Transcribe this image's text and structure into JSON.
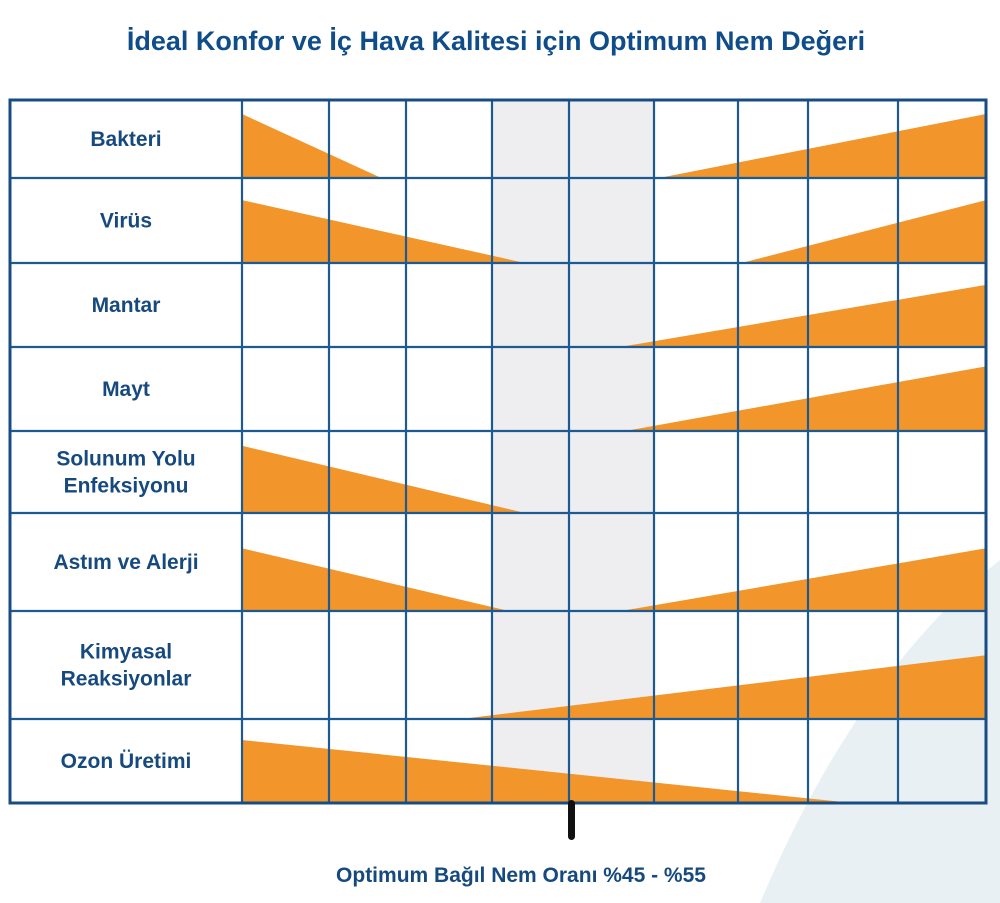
{
  "chart_data": {
    "type": "table",
    "title": "İdeal Konfor ve İç Hava Kalitesi için Optimum Nem Değeri",
    "xlabel": "Optimum Bağıl Nem Oranı %45 - %55",
    "grid": true,
    "columns": 9,
    "optimum_columns": [
      3,
      5
    ],
    "colors": {
      "risk": "#f2952b",
      "grid": "#1d5a92",
      "optimum": "#eeeef0",
      "text": "#164a7e"
    },
    "rows": [
      {
        "label": [
          "Bakteri"
        ],
        "left": {
          "end": 1.68,
          "height": 0.82
        },
        "right": {
          "start": 5.06,
          "height": 0.82
        }
      },
      {
        "label": [
          "Virüs"
        ],
        "left": {
          "end": 3.43,
          "height": 0.74
        },
        "right": {
          "start": 6.05,
          "height": 0.74
        }
      },
      {
        "label": [
          "Mantar"
        ],
        "left": null,
        "right": {
          "start": 4.6,
          "height": 0.74
        }
      },
      {
        "label": [
          "Mayt"
        ],
        "left": null,
        "right": {
          "start": 4.66,
          "height": 0.77
        }
      },
      {
        "label": [
          "Solunum Yolu",
          "Enfeksiyonu"
        ],
        "left": {
          "end": 3.43,
          "height": 0.82
        },
        "right": null
      },
      {
        "label": [
          "Astım ve Alerji"
        ],
        "left": {
          "end": 3.22,
          "height": 0.64
        },
        "right": {
          "start": 4.61,
          "height": 0.64
        }
      },
      {
        "label": [
          "Kimyasal",
          "Reaksiyonlar"
        ],
        "left": null,
        "right": {
          "start": 2.64,
          "height": 0.59
        }
      },
      {
        "label": [
          "Ozon Üretimi"
        ],
        "left": {
          "end": 7.5,
          "height": 0.75
        },
        "right": null
      }
    ]
  }
}
